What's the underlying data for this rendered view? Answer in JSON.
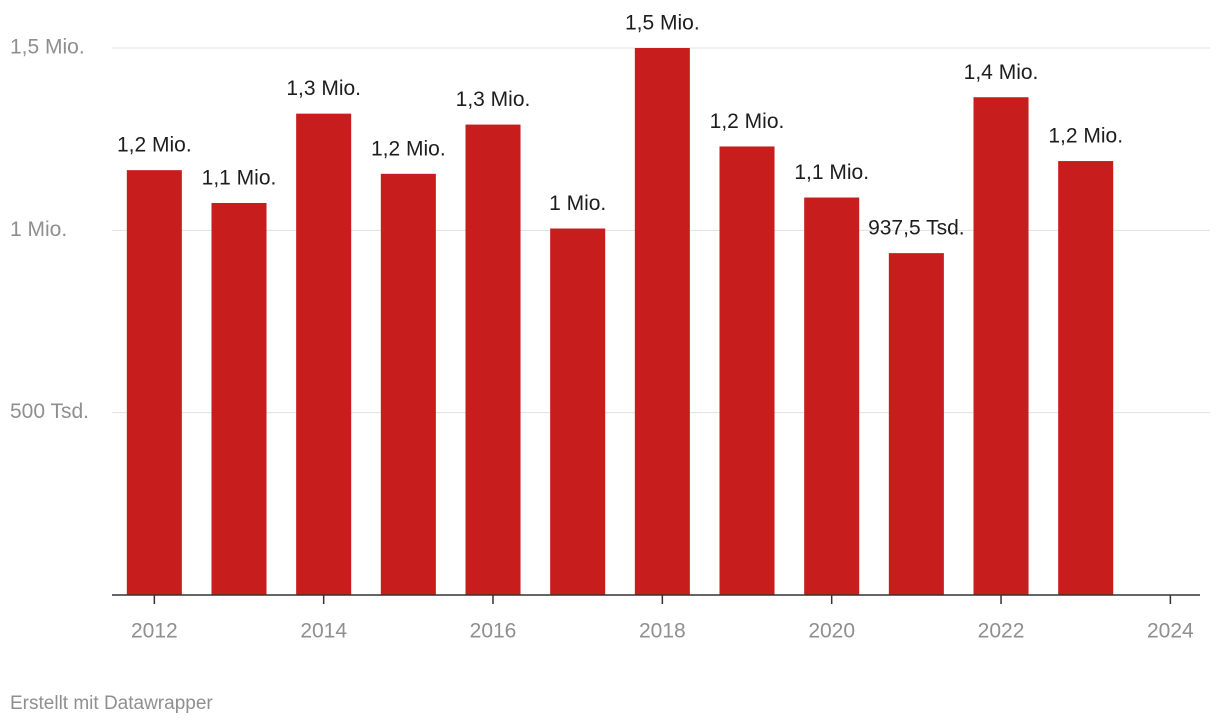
{
  "chart_data": {
    "type": "bar",
    "x": [
      2012,
      2013,
      2014,
      2015,
      2016,
      2017,
      2018,
      2019,
      2020,
      2021,
      2022,
      2023
    ],
    "values": [
      1165000,
      1075000,
      1320000,
      1155000,
      1290000,
      1005000,
      1500000,
      1230000,
      1090000,
      937500,
      1365000,
      1190000
    ],
    "value_labels": [
      "1,2 Mio.",
      "1,1 Mio.",
      "1,3 Mio.",
      "1,2 Mio.",
      "1,3 Mio.",
      "1 Mio.",
      "1,5 Mio.",
      "1,2 Mio.",
      "1,1 Mio.",
      "937,5 Tsd.",
      "1,4 Mio.",
      "1,2 Mio."
    ],
    "color": "#c71e1d",
    "xlim": [
      2011.5,
      2024.35
    ],
    "xticks": [
      2012,
      2014,
      2016,
      2018,
      2020,
      2022,
      2024
    ],
    "ylim": [
      0,
      1500000
    ],
    "yticks": [
      {
        "value": 500000,
        "label": "500 Tsd."
      },
      {
        "value": 1000000,
        "label": "1 Mio."
      },
      {
        "value": 1500000,
        "label": "1,5 Mio."
      }
    ],
    "grid": true,
    "credit": "Erstellt mit Datawrapper"
  }
}
